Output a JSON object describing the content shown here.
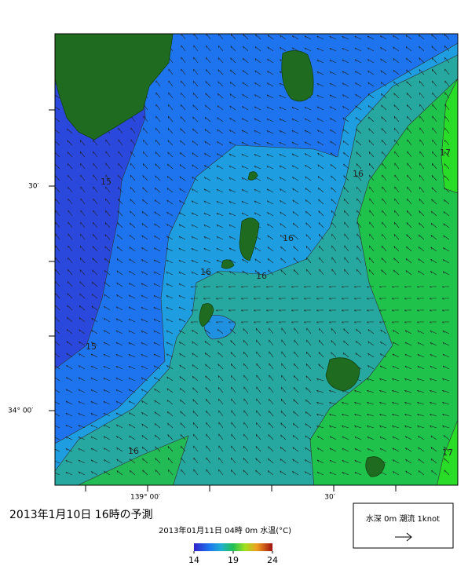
{
  "map": {
    "title": "2013年1月10日  16時の予測",
    "subtitle": "2013年01月11日 04時 0m 水温(°C)",
    "axis_labels": {
      "lat": [
        "30′",
        "34° 00′"
      ],
      "lon": [
        "139° 00′",
        "30′"
      ]
    },
    "contour_labels": [
      15,
      16,
      16,
      16,
      16,
      17,
      15,
      16,
      17
    ],
    "colorbar": {
      "range": [
        14,
        24
      ],
      "ticks": [
        14,
        19,
        24
      ]
    },
    "legend": "水深 0m 潮流 1knot"
  }
}
